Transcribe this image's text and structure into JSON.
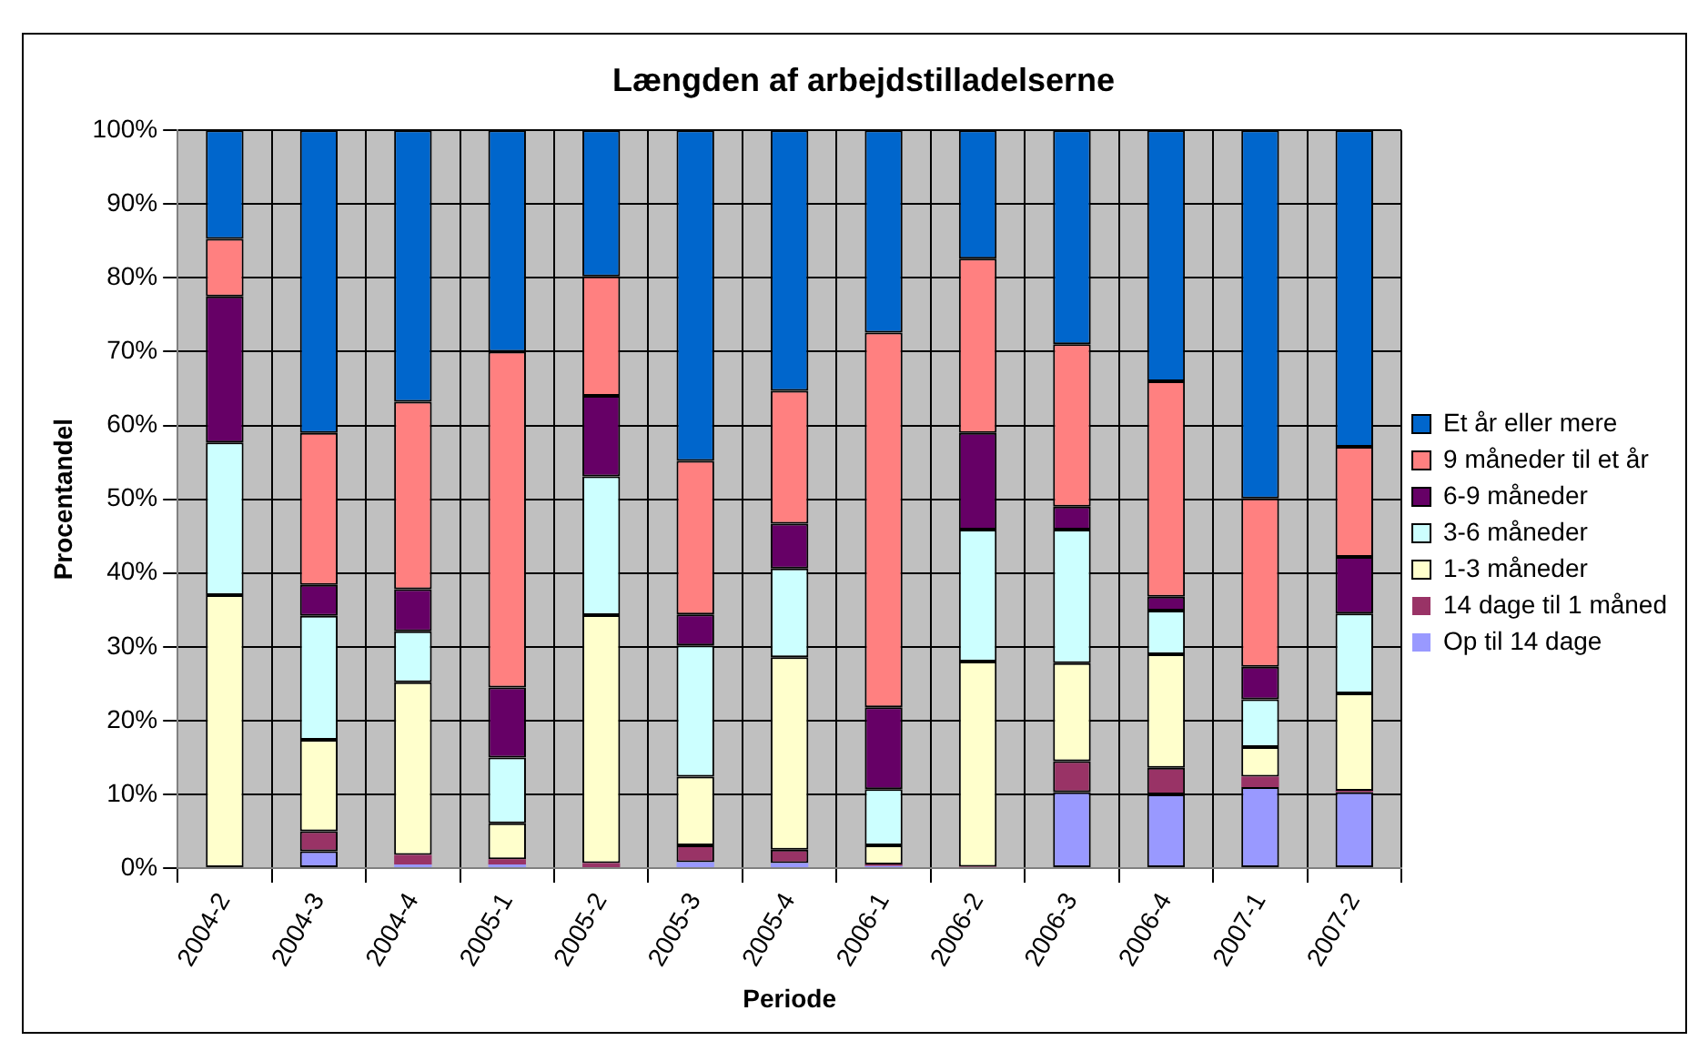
{
  "chart_data": {
    "type": "bar",
    "title": "Længden af arbejdstilladelserne",
    "xlabel": "Periode",
    "ylabel": "Procentandel",
    "stacked": true,
    "grid": true,
    "legend": "right",
    "categories": [
      "2004-2",
      "2004-3",
      "2004-4",
      "2005-1",
      "2005-2",
      "2005-3",
      "2005-4",
      "2006-1",
      "2006-2",
      "2006-3",
      "2006-4",
      "2007-1",
      "2007-2"
    ],
    "ylim": [
      0,
      100
    ],
    "yticks": [
      {
        "value": 0,
        "label": "0%"
      },
      {
        "value": 10,
        "label": "10%"
      },
      {
        "value": 20,
        "label": "20%"
      },
      {
        "value": 30,
        "label": "30%"
      },
      {
        "value": 40,
        "label": "40%"
      },
      {
        "value": 50,
        "label": "50%"
      },
      {
        "value": 60,
        "label": "60%"
      },
      {
        "value": 70,
        "label": "70%"
      },
      {
        "value": 80,
        "label": "80%"
      },
      {
        "value": 90,
        "label": "90%"
      },
      {
        "value": 100,
        "label": "100%"
      }
    ],
    "series": [
      {
        "name": "Op til 14 dage",
        "color": "#9999ff",
        "values": [
          0,
          2.3,
          0.5,
          0.5,
          0,
          0.8,
          0.7,
          0.3,
          0,
          10.3,
          10,
          11,
          10.3
        ]
      },
      {
        "name": "14 dage til 1 måned",
        "color": "#993366",
        "values": [
          0,
          2.7,
          1.3,
          0.7,
          0.7,
          2.3,
          1.8,
          0.2,
          0.2,
          4.2,
          3.6,
          1.4,
          0.2
        ]
      },
      {
        "name": "1-3 måneder",
        "color": "#ffffcc",
        "values": [
          37,
          12.4,
          23.4,
          4.9,
          33.6,
          9.3,
          26.1,
          2.6,
          27.8,
          13.3,
          15.4,
          4,
          13.2
        ]
      },
      {
        "name": "3-6 måneder",
        "color": "#ccffff",
        "values": [
          20.7,
          16.8,
          6.9,
          8.9,
          18.8,
          17.8,
          12,
          7.6,
          17.9,
          18.1,
          5.9,
          6.5,
          10.8
        ]
      },
      {
        "name": "6-9 måneder",
        "color": "#660066",
        "values": [
          19.8,
          4.2,
          5.7,
          9.5,
          10.9,
          4.2,
          6.1,
          11.1,
          13.1,
          3.1,
          1.9,
          4.4,
          7.7
        ]
      },
      {
        "name": "9 måneder til et år",
        "color": "#ff8080",
        "values": [
          7.8,
          20.6,
          25.4,
          45.5,
          16.2,
          20.8,
          18,
          50.8,
          23.6,
          22,
          29.2,
          22.8,
          14.9
        ]
      },
      {
        "name": "Et år eller mere",
        "color": "#0066cc",
        "values": [
          14.7,
          41,
          36.8,
          30,
          19.8,
          44.8,
          35.3,
          27.4,
          17.4,
          29,
          34,
          49.9,
          42.9
        ]
      }
    ]
  }
}
